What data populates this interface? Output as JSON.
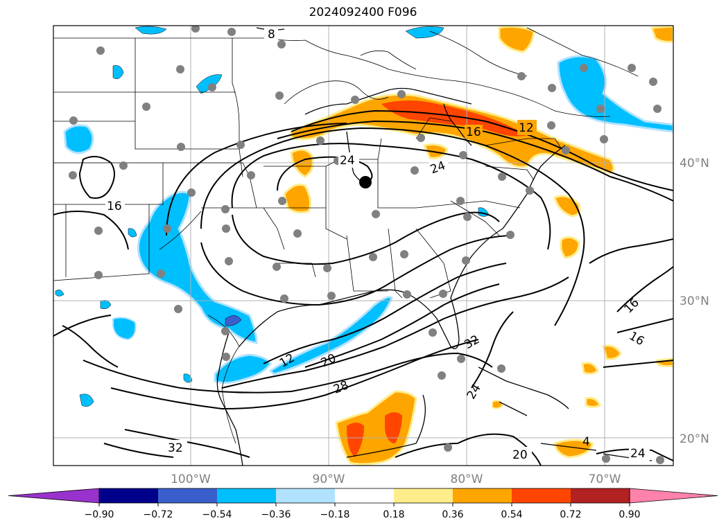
{
  "title": "2024092400 F096",
  "map": {
    "lat_labels": [
      "40°N",
      "30°N",
      "20°N"
    ],
    "lon_labels": [
      "100°W",
      "90°W",
      "80°W",
      "70°W"
    ],
    "contour_labels": [
      "8",
      "24",
      "16",
      "12",
      "24",
      "16",
      "12",
      "20",
      "28",
      "32",
      "24",
      "16",
      "16",
      "32",
      "20",
      "24",
      "4"
    ]
  },
  "colorbar": {
    "colors": [
      "#9932cc",
      "#00008b",
      "#3a5fcd",
      "#00bfff",
      "#b0e2ff",
      "#ffffff",
      "#ffec8b",
      "#ffa500",
      "#ff4500",
      "#b22222",
      "#ff82ab"
    ],
    "tick_labels": [
      "−0.90",
      "−0.72",
      "−0.54",
      "−0.36",
      "−0.18",
      "0.18",
      "0.36",
      "0.54",
      "0.72",
      "0.90"
    ]
  }
}
